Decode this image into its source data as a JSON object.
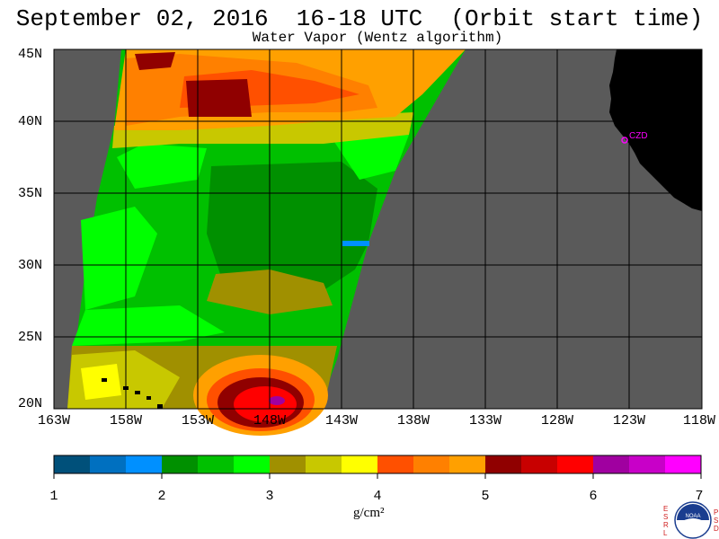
{
  "title": "September 02, 2016  16-18 UTC  (Orbit start time)",
  "subtitle": "Water Vapor (Wentz algorithm)",
  "lat_labels": [
    "45N",
    "40N",
    "35N",
    "30N",
    "25N",
    "20N"
  ],
  "lon_labels": [
    "163W",
    "158W",
    "153W",
    "148W",
    "143W",
    "138W",
    "133W",
    "128W",
    "123W",
    "118W"
  ],
  "colorbar": {
    "colors": [
      "#00507a",
      "#0070c0",
      "#0090ff",
      "#009000",
      "#00c000",
      "#00ff00",
      "#a09000",
      "#c8c800",
      "#ffff00",
      "#ff5000",
      "#ff8000",
      "#ffa000",
      "#900000",
      "#c80000",
      "#ff0000",
      "#a000a0",
      "#c800c8",
      "#ff00ff"
    ],
    "tick_labels": [
      "1",
      "2",
      "3",
      "4",
      "5",
      "6",
      "7"
    ],
    "units": "g/cm²"
  },
  "colors": {
    "background_gray": "#5a5a5a",
    "land": "#000000",
    "grid": "#000000",
    "station": "#ff00ff"
  },
  "station_label": "CZD",
  "logo": {
    "left_letters": [
      "E",
      "S",
      "R",
      "L"
    ],
    "right_letters": [
      "P",
      "S",
      "D"
    ],
    "center": "NOAA"
  }
}
